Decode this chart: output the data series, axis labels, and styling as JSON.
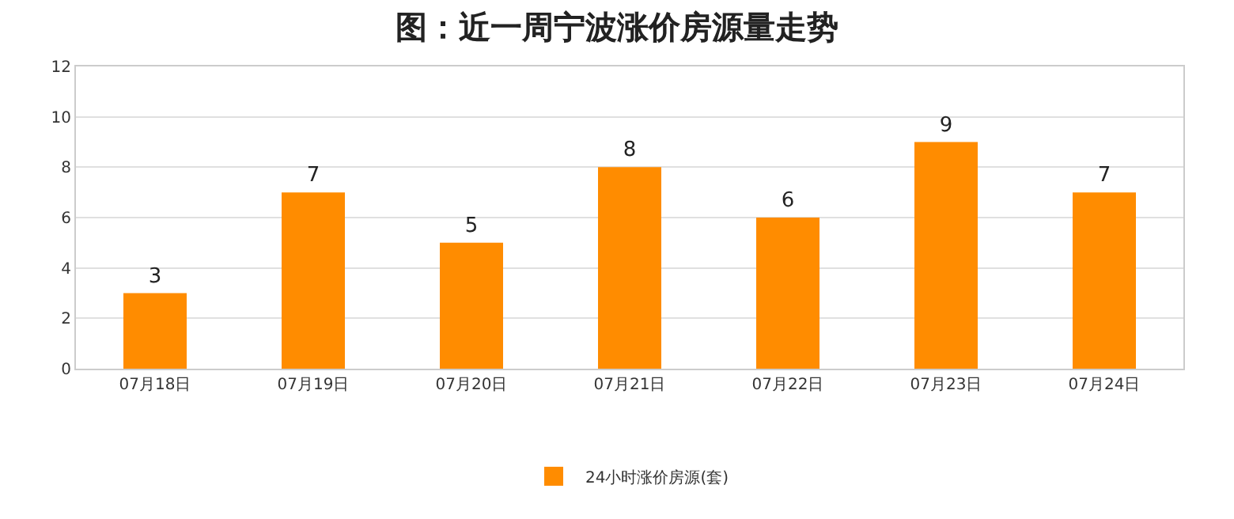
{
  "chart_data": {
    "type": "bar",
    "title": "图：近一周宁波涨价房源量走势",
    "categories": [
      "07月18日",
      "07月19日",
      "07月20日",
      "07月21日",
      "07月22日",
      "07月23日",
      "07月24日"
    ],
    "series": [
      {
        "name": "24小时涨价房源(套)",
        "color": "#ff8c00",
        "values": [
          3,
          7,
          5,
          8,
          6,
          9,
          7
        ]
      }
    ],
    "ylim": [
      0,
      12
    ],
    "yticks": [
      0,
      2,
      4,
      6,
      8,
      10,
      12
    ],
    "grid": "y",
    "legend": "bottom",
    "data_labels": true
  }
}
